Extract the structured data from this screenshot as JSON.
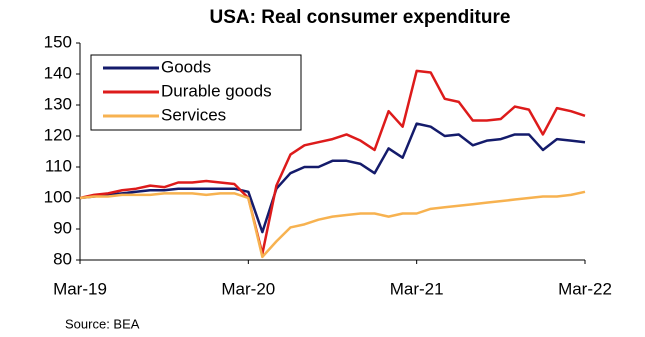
{
  "chart_data": {
    "type": "line",
    "title": "USA: Real consumer  expenditure",
    "source": "Source: BEA",
    "categories": [
      "Mar-19",
      null,
      null,
      null,
      null,
      null,
      null,
      null,
      null,
      null,
      null,
      null,
      "Mar-20",
      null,
      null,
      null,
      null,
      null,
      null,
      null,
      null,
      null,
      null,
      null,
      "Mar-21",
      null,
      null,
      null,
      null,
      null,
      null,
      null,
      null,
      null,
      null,
      null,
      "Mar-22"
    ],
    "series": [
      {
        "name": "Goods",
        "color": "#141b6b",
        "values": [
          100,
          100.5,
          101,
          101.5,
          102,
          102.5,
          102.5,
          103,
          103,
          103,
          103,
          103,
          102,
          89,
          103,
          108,
          110,
          110,
          112,
          112,
          111,
          108,
          116,
          113,
          124,
          123,
          120,
          120.5,
          117,
          118.5,
          119,
          120.5,
          120.5,
          115.5,
          119,
          118.5,
          118
        ]
      },
      {
        "name": "Durable goods",
        "color": "#dd1b1b",
        "values": [
          100,
          101,
          101.5,
          102.5,
          103,
          104,
          103.5,
          105,
          105,
          105.5,
          105,
          104.5,
          100,
          82,
          104,
          114,
          117,
          118,
          119,
          120.5,
          118.5,
          115.5,
          128,
          123,
          141,
          140.5,
          132,
          131,
          125,
          125,
          125.5,
          129.5,
          128.5,
          120.5,
          129,
          128,
          126.5
        ]
      },
      {
        "name": "Services",
        "color": "#f7b250",
        "values": [
          100,
          100.5,
          100.5,
          101,
          101,
          101,
          101.5,
          101.5,
          101.5,
          101,
          101.5,
          101.5,
          100,
          81,
          86,
          90.5,
          91.5,
          93,
          94,
          94.5,
          95,
          95,
          94,
          95,
          95,
          96.5,
          97,
          97.5,
          98,
          98.5,
          99,
          99.5,
          100,
          100.5,
          100.5,
          101,
          102
        ]
      }
    ],
    "ylim": [
      80,
      150
    ],
    "yticks": [
      80,
      90,
      100,
      110,
      120,
      130,
      140,
      150
    ],
    "grid": false,
    "legend": "top-left"
  }
}
